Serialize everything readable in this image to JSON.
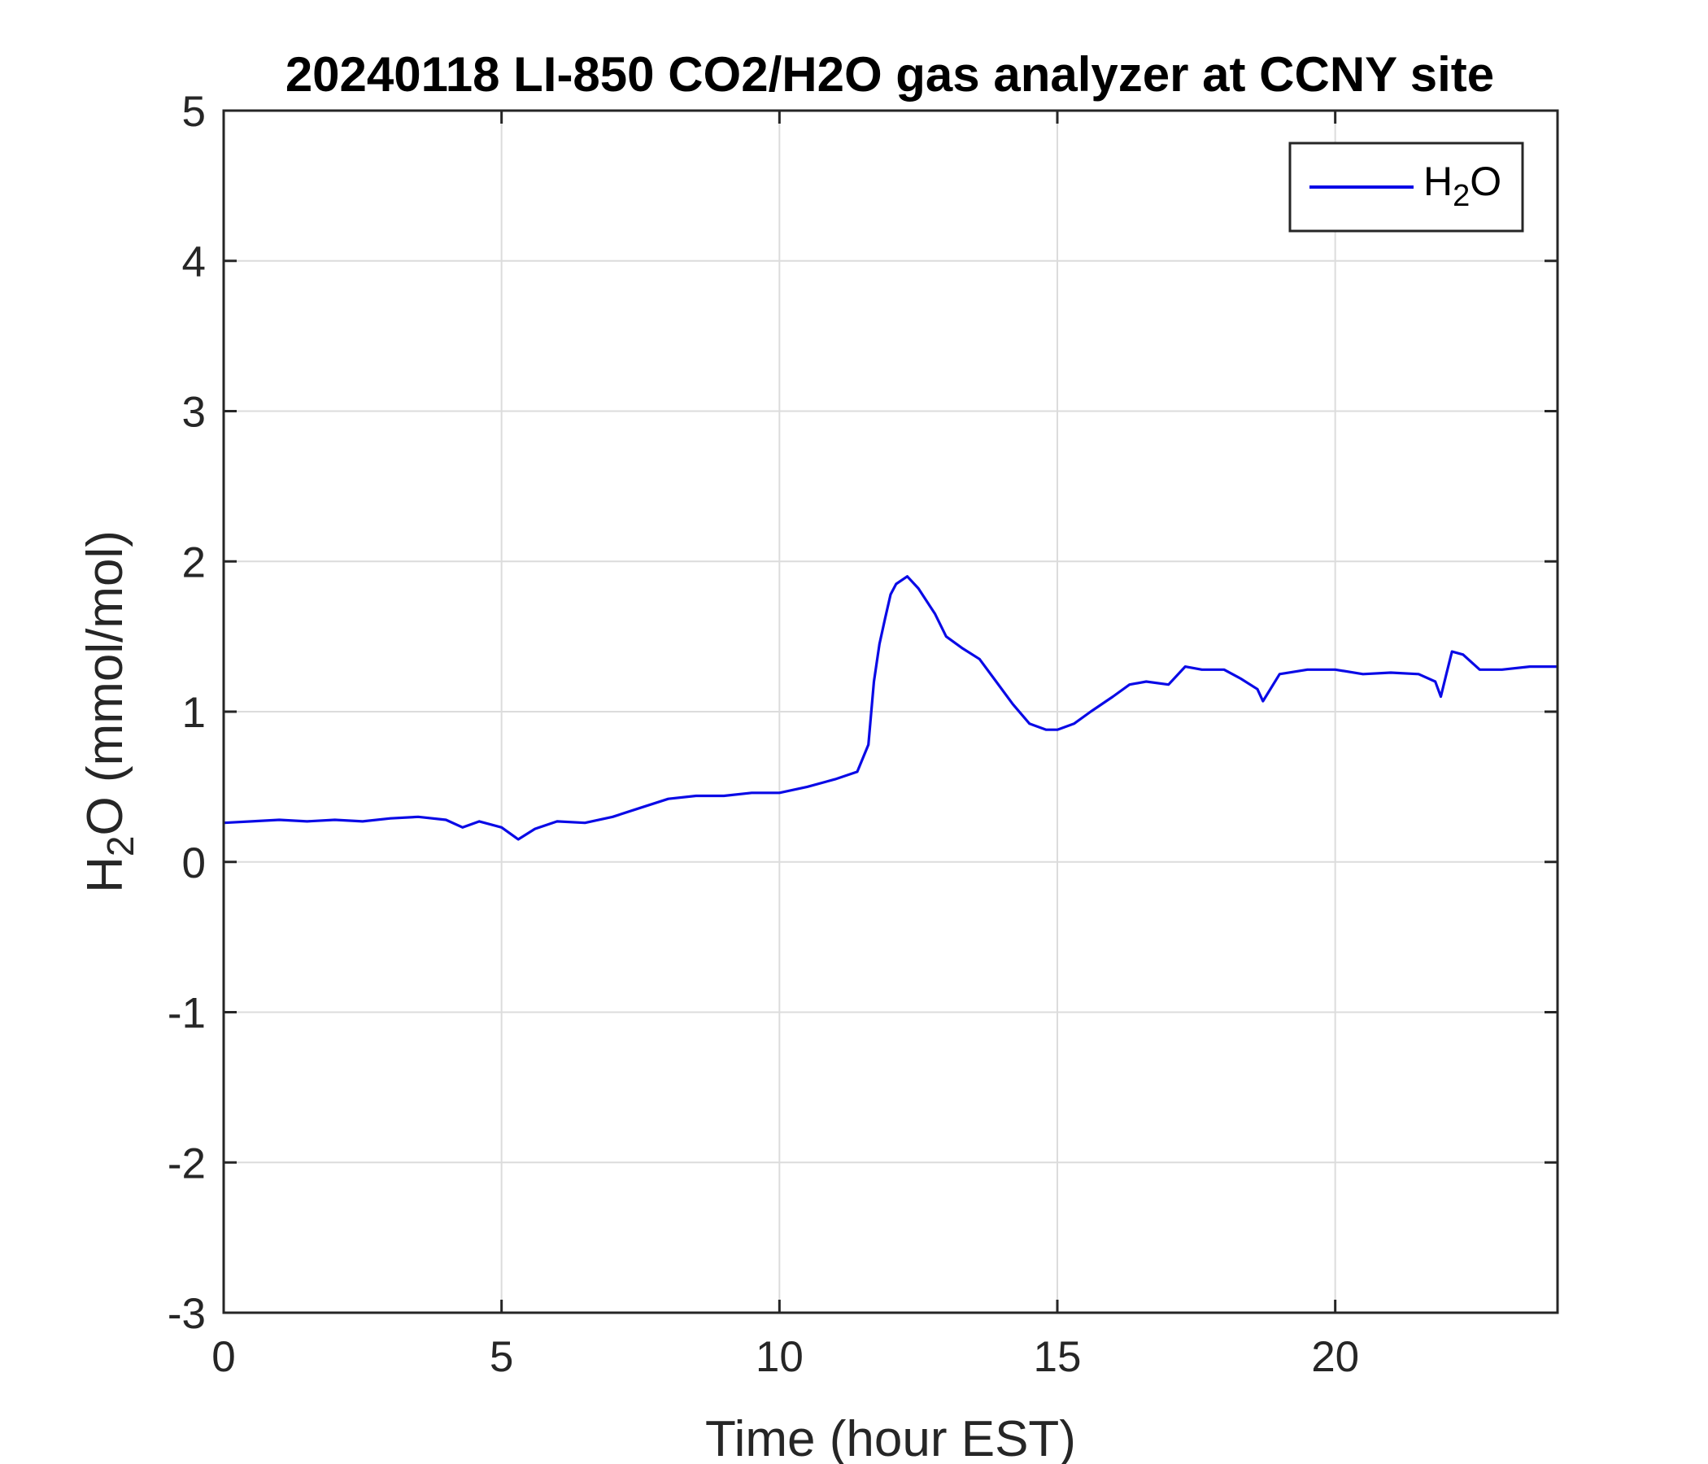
{
  "chart_data": {
    "type": "line",
    "title": "20240118 LI-850 CO2/H2O gas analyzer at CCNY site",
    "xlabel": "Time (hour EST)",
    "ylabel": {
      "main": "H",
      "sub": "2",
      "rest": "O (mmol/mol)"
    },
    "xlim": [
      0,
      24
    ],
    "ylim": [
      -3,
      5
    ],
    "xticks": [
      0,
      5,
      10,
      15,
      20
    ],
    "yticks": [
      -3,
      -2,
      -1,
      0,
      1,
      2,
      3,
      4,
      5
    ],
    "grid": true,
    "legend_position": "top-right",
    "series": [
      {
        "name": {
          "main": "H",
          "sub": "2",
          "rest": "O"
        },
        "color": "#0a0ae6",
        "x": [
          0,
          0.5,
          1,
          1.5,
          2,
          2.5,
          3,
          3.5,
          4,
          4.3,
          4.6,
          5,
          5.3,
          5.6,
          6,
          6.5,
          7,
          7.5,
          8,
          8.5,
          9,
          9.5,
          10,
          10.5,
          11,
          11.4,
          11.6,
          11.7,
          11.8,
          11.9,
          12,
          12.1,
          12.3,
          12.5,
          12.8,
          13,
          13.3,
          13.6,
          13.9,
          14.2,
          14.5,
          14.8,
          15,
          15.3,
          15.6,
          16,
          16.3,
          16.6,
          17,
          17.3,
          17.6,
          18,
          18.3,
          18.6,
          18.7,
          19,
          19.5,
          20,
          20.5,
          21,
          21.5,
          21.8,
          21.9,
          22,
          22.1,
          22.3,
          22.6,
          23,
          23.5,
          24
        ],
        "y": [
          0.26,
          0.27,
          0.28,
          0.27,
          0.28,
          0.27,
          0.29,
          0.3,
          0.28,
          0.23,
          0.27,
          0.23,
          0.15,
          0.22,
          0.27,
          0.26,
          0.3,
          0.36,
          0.42,
          0.44,
          0.44,
          0.46,
          0.46,
          0.5,
          0.55,
          0.6,
          0.78,
          1.2,
          1.45,
          1.62,
          1.78,
          1.85,
          1.9,
          1.82,
          1.65,
          1.5,
          1.42,
          1.35,
          1.2,
          1.05,
          0.92,
          0.88,
          0.88,
          0.92,
          1.0,
          1.1,
          1.18,
          1.2,
          1.18,
          1.3,
          1.28,
          1.28,
          1.22,
          1.15,
          1.07,
          1.25,
          1.28,
          1.28,
          1.25,
          1.26,
          1.25,
          1.2,
          1.1,
          1.25,
          1.4,
          1.38,
          1.28,
          1.28,
          1.3,
          1.3
        ]
      }
    ]
  }
}
